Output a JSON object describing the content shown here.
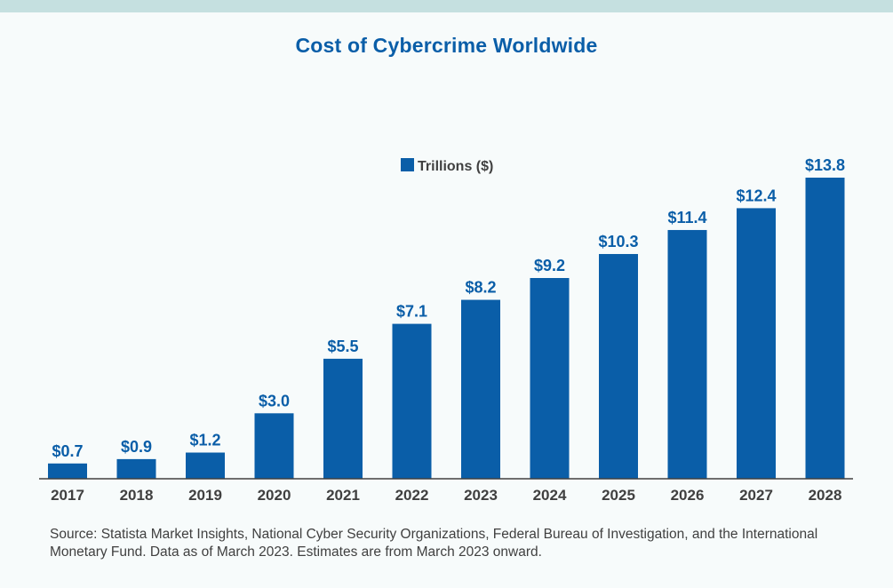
{
  "chart_data": {
    "type": "bar",
    "title": "Cost of Cybercrime Worldwide",
    "categories": [
      "2017",
      "2018",
      "2019",
      "2020",
      "2021",
      "2022",
      "2023",
      "2024",
      "2025",
      "2026",
      "2027",
      "2028"
    ],
    "series": [
      {
        "name": "Trillions ($)",
        "values": [
          0.7,
          0.9,
          1.2,
          3.0,
          5.5,
          7.1,
          8.2,
          9.2,
          10.3,
          11.4,
          12.4,
          13.8
        ],
        "labels": [
          "$0.7",
          "$0.9",
          "$1.2",
          "$3.0",
          "$5.5",
          "$7.1",
          "$8.2",
          "$9.2",
          "$10.3",
          "$11.4",
          "$12.4",
          "$13.8"
        ]
      }
    ],
    "xlabel": "",
    "ylabel": "",
    "ylim": [
      0,
      13.8
    ],
    "grid": false,
    "legend": "top-center"
  },
  "source": "Source: Statista Market Insights, National Cyber Security Organizations, Federal Bureau of Investigation, and the International Monetary Fund. Data as of March 2023. Estimates are from March 2023 onward.",
  "colors": {
    "bar": "#0a5ea8",
    "title": "#0a5ea8",
    "label": "#0a5ea8",
    "axis": "#404040",
    "band": "#c5e0e0",
    "background": "#f7fbfb"
  }
}
